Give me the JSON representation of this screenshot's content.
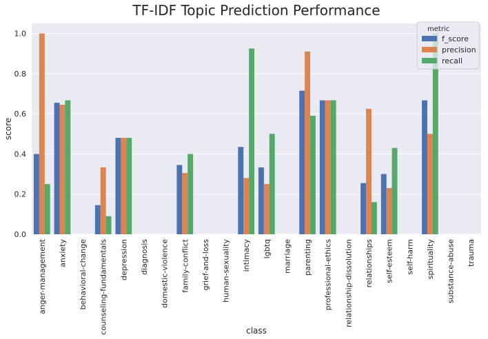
{
  "chart_data": {
    "type": "bar",
    "title": "TF-IDF Topic Prediction Performance",
    "xlabel": "class",
    "ylabel": "score",
    "ylim": [
      0,
      1.05
    ],
    "yticks": [
      "0.0",
      "0.2",
      "0.4",
      "0.6",
      "0.8",
      "1.0"
    ],
    "grid": true,
    "legend": {
      "title": "metric",
      "placement": "top-right"
    },
    "categories": [
      "anger-management",
      "anxiety",
      "behavioral-change",
      "counseling-fundamentals",
      "depression",
      "diagnosis",
      "domestic-violence",
      "family-conflict",
      "grief-and-loss",
      "human-sexuality",
      "intimacy",
      "lgbtq",
      "marriage",
      "parenting",
      "professional-ethics",
      "relationship-dissolution",
      "relationships",
      "self-esteem",
      "self-harm",
      "spirituality",
      "substance-abuse",
      "trauma"
    ],
    "series": [
      {
        "name": "f_score",
        "color": "#4c72b0",
        "values": [
          0.4,
          0.655,
          0,
          0.145,
          0.48,
          0,
          0,
          0.345,
          0,
          0,
          0.435,
          0.333,
          0,
          0.715,
          0.667,
          0,
          0.255,
          0.3,
          0,
          0.667,
          0,
          0
        ]
      },
      {
        "name": "precision",
        "color": "#dd8452",
        "values": [
          1.0,
          0.645,
          0,
          0.333,
          0.48,
          0,
          0,
          0.305,
          0,
          0,
          0.28,
          0.25,
          0,
          0.91,
          0.667,
          0,
          0.625,
          0.23,
          0,
          0.5,
          0,
          0
        ]
      },
      {
        "name": "recall",
        "color": "#55a868",
        "values": [
          0.25,
          0.667,
          0,
          0.09,
          0.48,
          0,
          0,
          0.4,
          0,
          0,
          0.925,
          0.5,
          0,
          0.59,
          0.667,
          0,
          0.16,
          0.43,
          0,
          1.0,
          0,
          0
        ]
      }
    ]
  }
}
